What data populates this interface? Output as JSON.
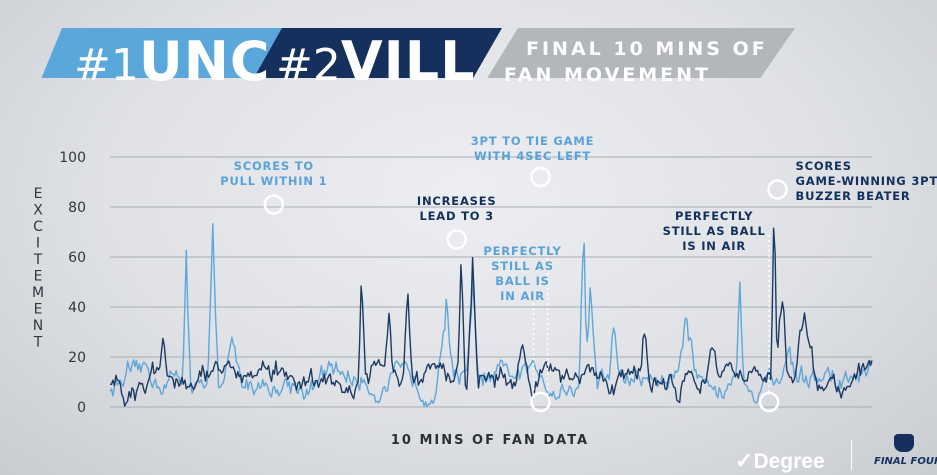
{
  "header": {
    "team1": {
      "rank": "#1",
      "name": "UNC",
      "color": "#4b9cd3"
    },
    "team2": {
      "rank": "#2",
      "name": "VILL",
      "color": "#13294b"
    },
    "title_line1": "FINAL 10 MINS OF",
    "title_line2": "FAN MOVEMENT"
  },
  "chart_data": {
    "type": "line",
    "ylabel": "EXCITEMENT",
    "xlabel": "10 MINS OF FAN DATA",
    "ylim": [
      0,
      100
    ],
    "yticks": [
      "0",
      "20",
      "40",
      "60",
      "80",
      "100"
    ],
    "grid": true,
    "series": [
      {
        "name": "UNC",
        "color": "#5aa2d8"
      },
      {
        "name": "VILL",
        "color": "#12305c"
      }
    ],
    "annotations": [
      {
        "text": [
          "SCORES TO",
          "PULL WITHIN 1"
        ],
        "x": 0.215,
        "y": 81,
        "color": "#5aa2d8"
      },
      {
        "text": [
          "INCREASES",
          "LEAD TO 3"
        ],
        "x": 0.455,
        "y": 67,
        "color": "#12305c"
      },
      {
        "text": [
          "3PT TO TIE GAME",
          "WITH 4SEC LEFT"
        ],
        "x": 0.565,
        "y": 92,
        "color": "#5aa2d8"
      },
      {
        "text": [
          "PERFECTLY",
          "STILL AS",
          "BALL IS",
          "IN AIR"
        ],
        "x": 0.565,
        "y": 2,
        "color": "#5aa2d8"
      },
      {
        "text": [
          "PERFECTLY",
          "STILL AS BALL",
          "IS IN AIR"
        ],
        "x": 0.865,
        "y": 2,
        "color": "#12305c"
      },
      {
        "text": [
          "SCORES",
          "GAME-WINNING 3PT",
          "BUZZER BEATER"
        ],
        "x": 0.876,
        "y": 87,
        "color": "#12305c"
      }
    ]
  },
  "footer": {
    "sponsor": "Degree",
    "event": "FINAL FOUR"
  }
}
